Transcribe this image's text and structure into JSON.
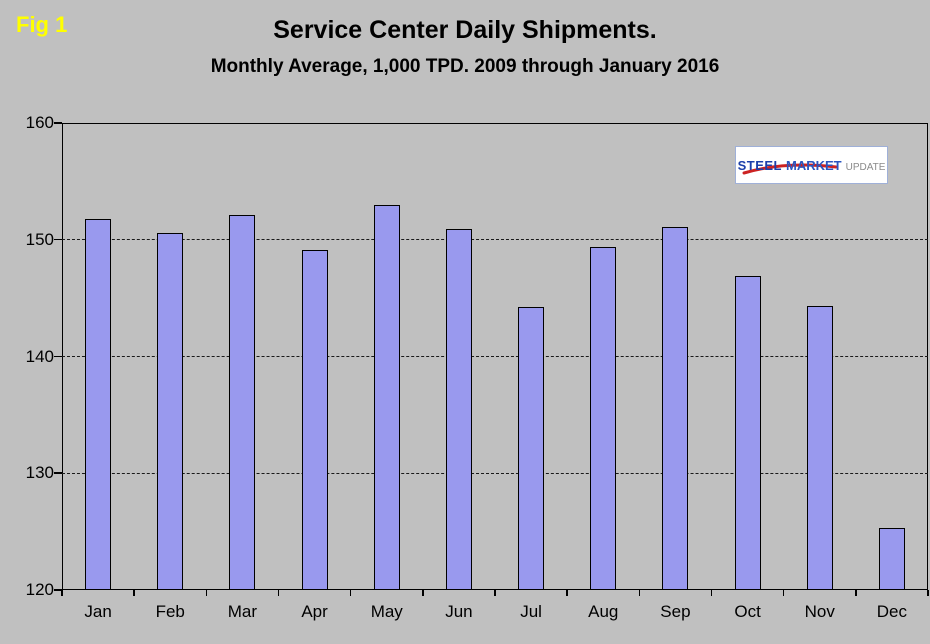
{
  "fig_label": "Fig 1",
  "title": "Service Center Daily Shipments.",
  "subtitle": "Monthly Average, 1,000 TPD.  2009 through January 2016",
  "logo": {
    "part1": "STEEL",
    "part2": "MARKET",
    "part3": "UPDATE"
  },
  "colors": {
    "background": "#c0c0c0",
    "bar_fill": "#9999ee",
    "bar_border": "#000000",
    "fig_label_color": "#ffff00",
    "logo_blue": "#1b3faa",
    "logo_red": "#cc2222",
    "logo_gray": "#8a8a8a"
  },
  "chart_data": {
    "type": "bar",
    "categories": [
      "Jan",
      "Feb",
      "Mar",
      "Apr",
      "May",
      "Jun",
      "Jul",
      "Aug",
      "Sep",
      "Oct",
      "Nov",
      "Dec"
    ],
    "values": [
      151.8,
      150.6,
      152.1,
      149.1,
      153.0,
      150.9,
      144.2,
      149.4,
      151.1,
      146.9,
      144.3,
      125.3
    ],
    "title": "Service Center Daily Shipments.",
    "subtitle": "Monthly Average, 1,000 TPD.  2009 through January 2016",
    "xlabel": "",
    "ylabel": "",
    "ylim": [
      120,
      160
    ],
    "ytick_step": 10,
    "grid": "dashed-horizontal",
    "legend": "none"
  }
}
